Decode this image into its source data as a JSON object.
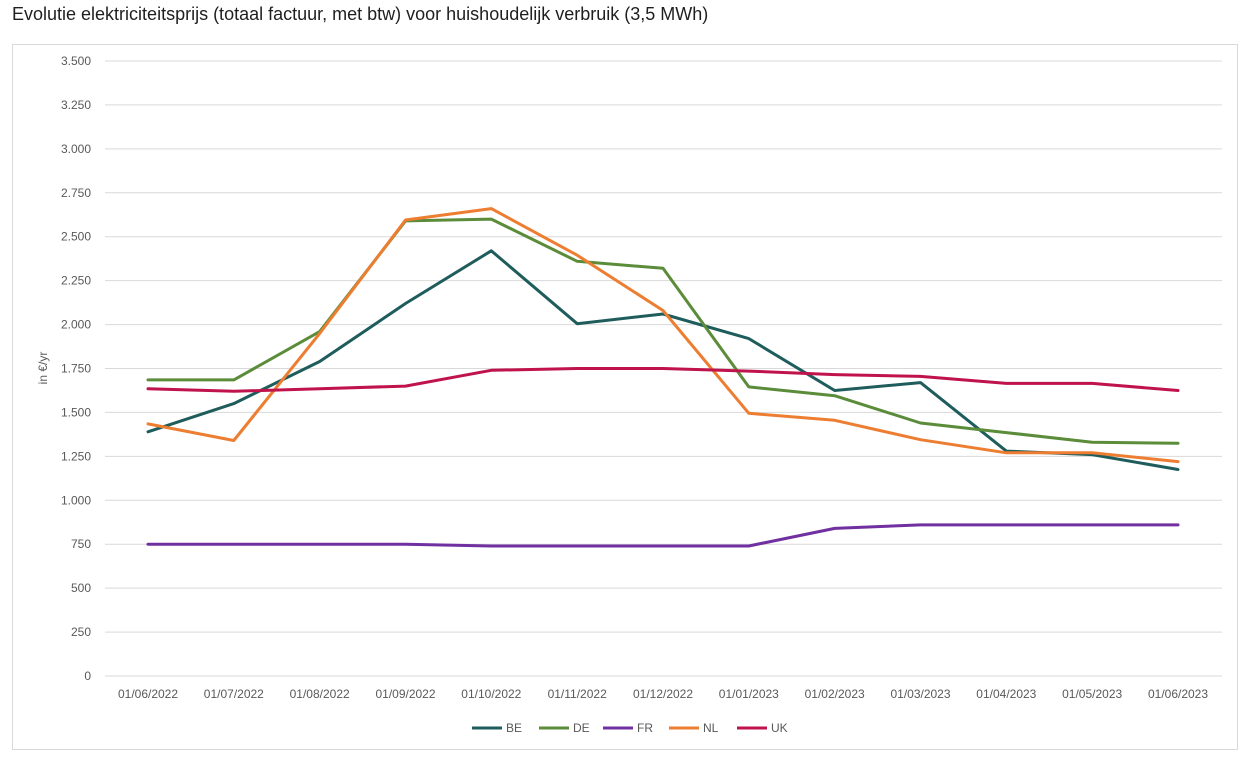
{
  "page": {
    "title": "Evolutie elektriciteitsprijs (totaal factuur, met btw) voor huishoudelijk verbruik (3,5 MWh)"
  },
  "chart_data": {
    "type": "line",
    "title": "",
    "xlabel": "",
    "ylabel": "in €/yr",
    "ylim": [
      0,
      3500
    ],
    "yticks": [
      0,
      250,
      500,
      750,
      1000,
      1250,
      1500,
      1750,
      2000,
      2250,
      2500,
      2750,
      3000,
      3250,
      3500
    ],
    "ytick_labels": [
      "0",
      "250",
      "500",
      "750",
      "1.000",
      "1.250",
      "1.500",
      "1.750",
      "2.000",
      "2.250",
      "2.500",
      "2.750",
      "3.000",
      "3.250",
      "3.500"
    ],
    "grid": true,
    "legend": "bottom",
    "categories": [
      "01/06/2022",
      "01/07/2022",
      "01/08/2022",
      "01/09/2022",
      "01/10/2022",
      "01/11/2022",
      "01/12/2022",
      "01/01/2023",
      "01/02/2023",
      "01/03/2023",
      "01/04/2023",
      "01/05/2023",
      "01/06/2023"
    ],
    "series": [
      {
        "name": "BE",
        "color": "#1f5c5c",
        "values": [
          1390,
          1550,
          1790,
          2120,
          2420,
          2005,
          2060,
          1920,
          1625,
          1670,
          1280,
          1260,
          1175
        ]
      },
      {
        "name": "DE",
        "color": "#5b8c3a",
        "values": [
          1685,
          1685,
          1960,
          2590,
          2600,
          2360,
          2320,
          1645,
          1595,
          1440,
          1385,
          1330,
          1325
        ]
      },
      {
        "name": "FR",
        "color": "#7030a0",
        "values": [
          750,
          750,
          750,
          750,
          740,
          740,
          740,
          740,
          840,
          860,
          860,
          860,
          860
        ]
      },
      {
        "name": "NL",
        "color": "#ed7d31",
        "values": [
          1435,
          1340,
          1950,
          2595,
          2660,
          2395,
          2080,
          1495,
          1455,
          1345,
          1270,
          1270,
          1220
        ]
      },
      {
        "name": "UK",
        "color": "#c0134c",
        "values": [
          1635,
          1620,
          1635,
          1650,
          1740,
          1750,
          1750,
          1735,
          1715,
          1705,
          1665,
          1665,
          1625
        ]
      }
    ]
  }
}
